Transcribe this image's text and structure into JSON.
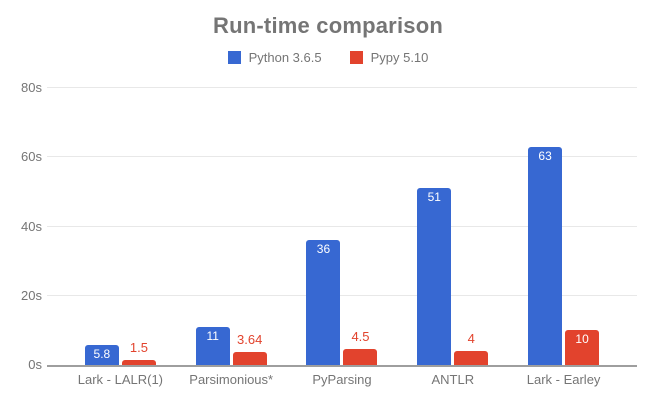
{
  "chart_data": {
    "type": "bar",
    "title": "Run-time comparison",
    "categories": [
      "Lark - LALR(1)",
      "Parsimonious*",
      "PyParsing",
      "ANTLR",
      "Lark - Earley"
    ],
    "series": [
      {
        "name": "Python 3.6.5",
        "color": "#3768d2",
        "values": [
          5.8,
          11,
          36,
          51,
          63
        ],
        "labels": [
          "5.8",
          "11",
          "36",
          "51",
          "63"
        ]
      },
      {
        "name": "Pypy 5.10",
        "color": "#e2432d",
        "values": [
          1.5,
          3.64,
          4.5,
          4,
          10
        ],
        "labels": [
          "1.5",
          "3.64",
          "4.5",
          "4",
          "10"
        ]
      }
    ],
    "ylim": [
      0,
      80
    ],
    "yticks": [
      {
        "value": 0,
        "label": "0s"
      },
      {
        "value": 20,
        "label": "20s"
      },
      {
        "value": 40,
        "label": "40s"
      },
      {
        "value": 60,
        "label": "60s"
      },
      {
        "value": 80,
        "label": "80s"
      }
    ],
    "xlabel": "",
    "ylabel": "",
    "grid": true,
    "legend_position": "top"
  },
  "colors": {
    "title_text": "#757575",
    "legend_text": "#757575",
    "axis_text": "#757575",
    "gridline": "#e8e8e8",
    "baseline": "#9e9e9e",
    "background": "#ffffff",
    "inside_label": "#ffffff"
  }
}
